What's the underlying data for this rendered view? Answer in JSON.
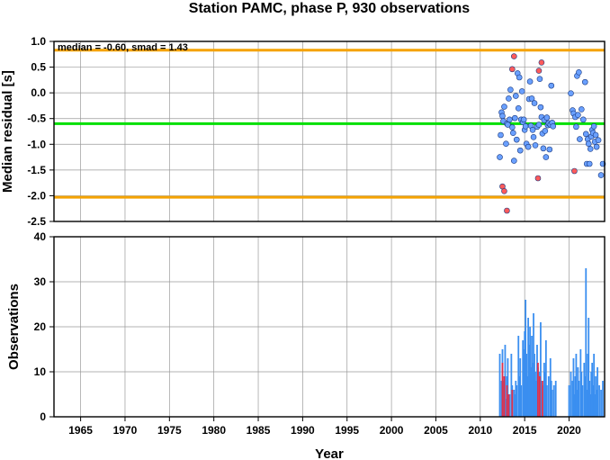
{
  "chart_data": [
    {
      "type": "scatter",
      "title": "Station PAMC, phase P, 930 observations",
      "xlabel": "Year",
      "ylabel": "Median residual [s]",
      "annotation": "median = -0.60, smad = 1.43",
      "xlim": [
        1962,
        2024
      ],
      "ylim": [
        -2.5,
        1.0
      ],
      "grid": true,
      "x_ticks": [
        "1965",
        "1970",
        "1975",
        "1980",
        "1985",
        "1990",
        "1995",
        "2000",
        "2005",
        "2010",
        "2015",
        "2020"
      ],
      "y_ticks": [
        "1.0",
        "0.5",
        "0.0",
        "-0.5",
        "-1.0",
        "-1.5",
        "-2.0",
        "-2.5"
      ],
      "reference_lines": [
        {
          "name": "median",
          "y": -0.6,
          "color": "#00e000"
        },
        {
          "name": "upper bound",
          "y": 0.83,
          "color": "#f5a300"
        },
        {
          "name": "lower bound",
          "y": -2.03,
          "color": "#f5a300"
        }
      ],
      "series": [
        {
          "color": "#6aa0ff",
          "points": [
            [
              2012.2,
              -1.25
            ],
            [
              2012.3,
              -0.82
            ],
            [
              2012.4,
              -0.38
            ],
            [
              2012.5,
              -0.45
            ],
            [
              2012.6,
              -0.55
            ],
            [
              2012.7,
              -0.27
            ],
            [
              2012.9,
              -0.99
            ],
            [
              2013.0,
              -0.6
            ],
            [
              2013.1,
              -0.62
            ],
            [
              2013.2,
              -0.11
            ],
            [
              2013.3,
              -0.52
            ],
            [
              2013.4,
              0.06
            ],
            [
              2013.6,
              -0.67
            ],
            [
              2013.7,
              -0.78
            ],
            [
              2013.8,
              -1.32
            ],
            [
              2013.9,
              -0.49
            ],
            [
              2014.0,
              -0.06
            ],
            [
              2014.1,
              -0.91
            ],
            [
              2014.2,
              0.38
            ],
            [
              2014.3,
              -0.3
            ],
            [
              2014.4,
              0.3
            ],
            [
              2014.5,
              -1.12
            ],
            [
              2014.6,
              -0.52
            ],
            [
              2014.7,
              0.03
            ],
            [
              2014.8,
              -0.57
            ],
            [
              2014.9,
              -0.52
            ],
            [
              2015.0,
              -0.72
            ],
            [
              2015.1,
              -0.65
            ],
            [
              2015.2,
              -0.99
            ],
            [
              2015.4,
              -1.05
            ],
            [
              2015.5,
              -0.12
            ],
            [
              2015.6,
              0.22
            ],
            [
              2015.7,
              -0.64
            ],
            [
              2015.8,
              -0.11
            ],
            [
              2015.9,
              -0.72
            ],
            [
              2016.0,
              -0.86
            ],
            [
              2016.1,
              -0.2
            ],
            [
              2016.2,
              -1.02
            ],
            [
              2016.4,
              -0.66
            ],
            [
              2016.6,
              -0.62
            ],
            [
              2016.7,
              0.27
            ],
            [
              2016.8,
              -0.28
            ],
            [
              2016.9,
              -0.47
            ],
            [
              2017.0,
              -0.79
            ],
            [
              2017.1,
              -1.08
            ],
            [
              2017.2,
              -0.53
            ],
            [
              2017.3,
              -0.74
            ],
            [
              2017.4,
              -1.25
            ],
            [
              2017.5,
              -0.48
            ],
            [
              2017.6,
              -0.63
            ],
            [
              2017.7,
              -0.59
            ],
            [
              2017.8,
              -1.1
            ],
            [
              2017.9,
              -0.62
            ],
            [
              2018.0,
              0.14
            ],
            [
              2018.1,
              -0.58
            ],
            [
              2018.2,
              -0.65
            ],
            [
              2020.2,
              -0.01
            ],
            [
              2020.4,
              -0.34
            ],
            [
              2020.5,
              -0.4
            ],
            [
              2020.7,
              -0.47
            ],
            [
              2020.8,
              -0.66
            ],
            [
              2020.9,
              0.33
            ],
            [
              2021.0,
              -0.43
            ],
            [
              2021.1,
              0.4
            ],
            [
              2021.2,
              -0.9
            ],
            [
              2021.4,
              -0.32
            ],
            [
              2021.6,
              -0.52
            ],
            [
              2021.8,
              0.21
            ],
            [
              2021.9,
              -0.8
            ],
            [
              2022.0,
              -1.38
            ],
            [
              2022.1,
              -0.9
            ],
            [
              2022.2,
              -0.99
            ],
            [
              2022.3,
              -1.38
            ],
            [
              2022.4,
              -1.09
            ],
            [
              2022.5,
              -0.85
            ],
            [
              2022.6,
              -0.72
            ],
            [
              2022.7,
              -0.78
            ],
            [
              2022.8,
              -0.65
            ],
            [
              2022.9,
              -0.95
            ],
            [
              2023.0,
              -0.82
            ],
            [
              2023.1,
              -1.05
            ],
            [
              2023.3,
              -0.92
            ],
            [
              2023.6,
              -1.6
            ],
            [
              2023.8,
              -1.38
            ]
          ]
        },
        {
          "color": "#ff5a5a",
          "points": [
            [
              2012.5,
              -1.82
            ],
            [
              2012.7,
              -1.91
            ],
            [
              2013.0,
              -2.29
            ],
            [
              2013.6,
              0.46
            ],
            [
              2013.8,
              0.71
            ],
            [
              2016.5,
              -1.66
            ],
            [
              2016.6,
              0.43
            ],
            [
              2016.9,
              0.59
            ],
            [
              2020.6,
              -1.52
            ]
          ]
        }
      ]
    },
    {
      "type": "bar",
      "xlabel": "Year",
      "ylabel": "Observations",
      "xlim": [
        1962,
        2024
      ],
      "ylim": [
        0,
        40
      ],
      "grid": true,
      "x_ticks": [
        "1965",
        "1970",
        "1975",
        "1980",
        "1985",
        "1990",
        "1995",
        "2000",
        "2005",
        "2010",
        "2015",
        "2020"
      ],
      "y_ticks": [
        "0",
        "10",
        "20",
        "30",
        "40"
      ],
      "series": [
        {
          "color": "#3b8ff0",
          "bars": [
            [
              2012.2,
              14
            ],
            [
              2012.4,
              8
            ],
            [
              2012.5,
              15
            ],
            [
              2012.6,
              8
            ],
            [
              2012.8,
              16
            ],
            [
              2012.9,
              4
            ],
            [
              2013.0,
              9
            ],
            [
              2013.1,
              13
            ],
            [
              2013.3,
              5
            ],
            [
              2013.5,
              14
            ],
            [
              2013.6,
              7
            ],
            [
              2013.8,
              6
            ],
            [
              2013.9,
              5
            ],
            [
              2014.0,
              8
            ],
            [
              2014.1,
              7
            ],
            [
              2014.3,
              18
            ],
            [
              2014.4,
              9
            ],
            [
              2014.5,
              13
            ],
            [
              2014.6,
              7
            ],
            [
              2014.8,
              17
            ],
            [
              2014.9,
              15
            ],
            [
              2015.0,
              19
            ],
            [
              2015.1,
              26
            ],
            [
              2015.2,
              14
            ],
            [
              2015.3,
              9
            ],
            [
              2015.4,
              22
            ],
            [
              2015.5,
              16
            ],
            [
              2015.6,
              20
            ],
            [
              2015.7,
              11
            ],
            [
              2015.8,
              18
            ],
            [
              2015.9,
              12
            ],
            [
              2016.0,
              23
            ],
            [
              2016.1,
              14
            ],
            [
              2016.2,
              10
            ],
            [
              2016.3,
              8
            ],
            [
              2016.4,
              16
            ],
            [
              2016.5,
              11
            ],
            [
              2016.7,
              10
            ],
            [
              2016.8,
              21
            ],
            [
              2016.9,
              8
            ],
            [
              2017.0,
              7
            ],
            [
              2017.2,
              12
            ],
            [
              2017.3,
              10
            ],
            [
              2017.4,
              17
            ],
            [
              2017.5,
              7
            ],
            [
              2017.7,
              9
            ],
            [
              2017.9,
              13
            ],
            [
              2018.0,
              8
            ],
            [
              2018.1,
              6
            ],
            [
              2018.3,
              7
            ],
            [
              2018.5,
              8
            ],
            [
              2020.0,
              7
            ],
            [
              2020.2,
              10
            ],
            [
              2020.4,
              8
            ],
            [
              2020.5,
              13
            ],
            [
              2020.6,
              5
            ],
            [
              2020.7,
              9
            ],
            [
              2020.8,
              14
            ],
            [
              2020.9,
              6
            ],
            [
              2021.0,
              11
            ],
            [
              2021.1,
              8
            ],
            [
              2021.3,
              15
            ],
            [
              2021.4,
              10
            ],
            [
              2021.5,
              7
            ],
            [
              2021.7,
              12
            ],
            [
              2021.8,
              9
            ],
            [
              2021.9,
              33
            ],
            [
              2022.0,
              6
            ],
            [
              2022.1,
              14
            ],
            [
              2022.2,
              22
            ],
            [
              2022.3,
              8
            ],
            [
              2022.4,
              5
            ],
            [
              2022.5,
              10
            ],
            [
              2022.6,
              12
            ],
            [
              2022.7,
              7
            ],
            [
              2022.8,
              14
            ],
            [
              2022.9,
              5
            ],
            [
              2023.0,
              9
            ],
            [
              2023.1,
              6
            ],
            [
              2023.2,
              11
            ],
            [
              2023.4,
              7
            ],
            [
              2023.6,
              6
            ],
            [
              2023.8,
              8
            ]
          ]
        },
        {
          "color": "#e0304a",
          "bars": [
            [
              2012.5,
              12
            ],
            [
              2012.7,
              9
            ],
            [
              2013.0,
              7
            ],
            [
              2013.2,
              5
            ],
            [
              2013.6,
              6
            ],
            [
              2016.5,
              12
            ],
            [
              2016.7,
              9
            ],
            [
              2017.0,
              8
            ]
          ]
        }
      ]
    }
  ]
}
